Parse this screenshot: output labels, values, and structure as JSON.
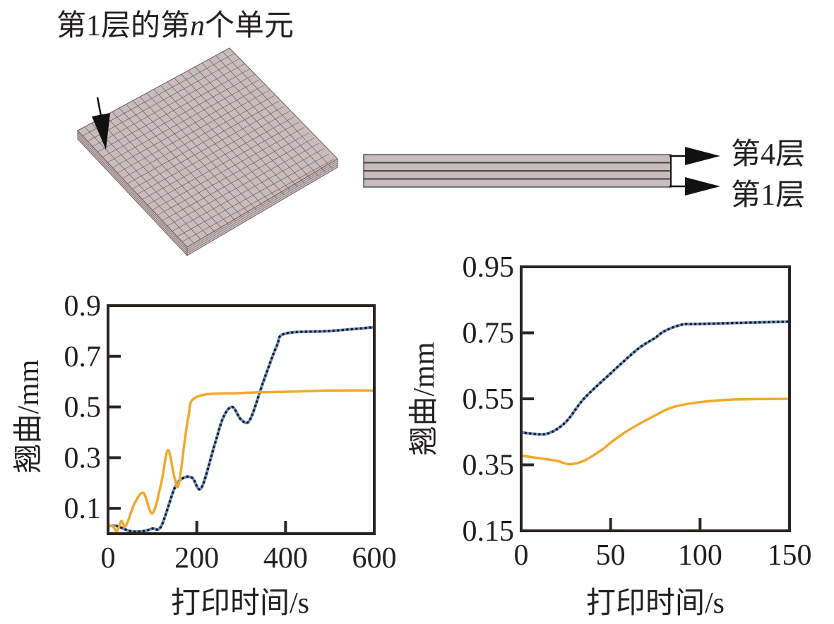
{
  "diagram": {
    "element_label_prefix": "第1层的第",
    "element_label_var": "n",
    "element_label_suffix": "个单元",
    "layer_top_label": "第4层",
    "layer_bottom_label": "第1层"
  },
  "colors": {
    "blue": "#6f8fbf",
    "dots": "#111820",
    "orange": "#f0aa2a",
    "axis": "#2b2420",
    "plate": "#c9bcbc",
    "grid": "#6e5a5a"
  },
  "chart_data": [
    {
      "type": "line",
      "xlabel": "打印时间/s",
      "ylabel": "翘曲/mm",
      "xlim": [
        0,
        600
      ],
      "ylim": [
        0,
        0.9
      ],
      "xticks": [
        0,
        200,
        400,
        600
      ],
      "xtick_labels": [
        "0",
        "200",
        "400",
        "600"
      ],
      "yticks": [
        0.1,
        0.3,
        0.5,
        0.7,
        0.9
      ],
      "ytick_labels": [
        "0.1",
        "0.3",
        "0.5",
        "0.7",
        "0.9"
      ],
      "series": [
        {
          "name": "blue-solid",
          "style": "solid-blue-with-dots",
          "x": [
            0,
            20,
            50,
            80,
            100,
            120,
            150,
            170,
            190,
            210,
            240,
            260,
            280,
            300,
            320,
            350,
            380,
            400,
            500,
            600
          ],
          "y": [
            0.03,
            0.03,
            0.01,
            0.01,
            0.02,
            0.03,
            0.18,
            0.22,
            0.22,
            0.18,
            0.35,
            0.46,
            0.5,
            0.45,
            0.45,
            0.6,
            0.74,
            0.79,
            0.8,
            0.815
          ]
        },
        {
          "name": "orange",
          "style": "solid-orange",
          "x": [
            0,
            10,
            20,
            30,
            40,
            60,
            80,
            100,
            120,
            135,
            150,
            160,
            180,
            200,
            300,
            400,
            500,
            600
          ],
          "y": [
            0.03,
            0.03,
            0.01,
            0.05,
            0.03,
            0.12,
            0.16,
            0.08,
            0.2,
            0.33,
            0.22,
            0.2,
            0.45,
            0.54,
            0.555,
            0.56,
            0.565,
            0.565
          ]
        }
      ]
    },
    {
      "type": "line",
      "xlabel": "打印时间/s",
      "ylabel": "翘曲/mm",
      "xlim": [
        0,
        150
      ],
      "ylim": [
        0.15,
        0.95
      ],
      "xticks": [
        0,
        50,
        100,
        150
      ],
      "xtick_labels": [
        "0",
        "50",
        "100",
        "150"
      ],
      "yticks": [
        0.15,
        0.35,
        0.55,
        0.75,
        0.95
      ],
      "ytick_labels": [
        "0.15",
        "0.35",
        "0.55",
        "0.75",
        "0.95"
      ],
      "series": [
        {
          "name": "blue-solid",
          "style": "solid-blue-with-dots",
          "x": [
            0,
            5,
            15,
            25,
            35,
            50,
            65,
            75,
            80,
            90,
            100,
            150
          ],
          "y": [
            0.449,
            0.445,
            0.445,
            0.48,
            0.55,
            0.627,
            0.7,
            0.735,
            0.755,
            0.775,
            0.777,
            0.784
          ]
        },
        {
          "name": "orange",
          "style": "solid-orange",
          "x": [
            0,
            10,
            20,
            27,
            35,
            45,
            50,
            60,
            75,
            85,
            100,
            120,
            150
          ],
          "y": [
            0.378,
            0.37,
            0.362,
            0.352,
            0.362,
            0.395,
            0.417,
            0.455,
            0.5,
            0.525,
            0.54,
            0.548,
            0.55
          ]
        }
      ]
    }
  ]
}
